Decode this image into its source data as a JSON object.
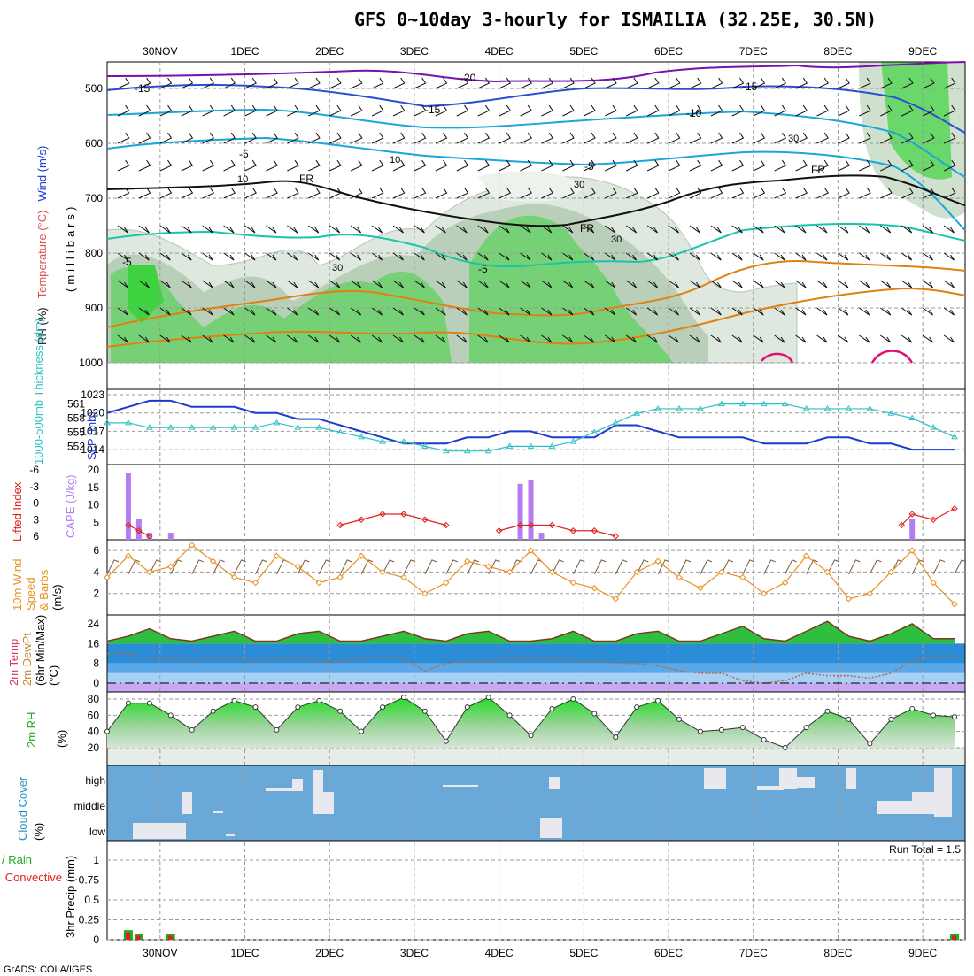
{
  "title": "GFS 0~10day 3-hourly for ISMAILIA (32.25E, 30.5N)",
  "footer": "GrADS: COLA/IGES",
  "run_total_label": "Run Total = 1.5",
  "dates": [
    "30NOV",
    "1DEC",
    "2DEC",
    "3DEC",
    "4DEC",
    "5DEC",
    "6DEC",
    "7DEC",
    "8DEC",
    "9DEC"
  ],
  "colors": {
    "frame": "#000000",
    "grid": "#9a9a9a",
    "rh_green": "#3fd33f",
    "rh_pale": "#e6efe6",
    "temp_purple": "#7a10b0",
    "temp_blue": "#2a50d0",
    "temp_cyan": "#1aa6d8",
    "temp_teal": "#19c4a8",
    "temp_orange": "#e08010",
    "slp": "#1a3ad0",
    "thickness": "#2ec0c8",
    "cape": "#b57ef0",
    "lifted_index": "#e02020",
    "wind_speed": "#e89020",
    "cloud_bg": "#6aa8d8",
    "cloud_fill": "#e8e8ee",
    "precip_total": "#22aa22",
    "precip_conv": "#e02020"
  },
  "panels": {
    "upper": {
      "ylabel_parts": [
        "RH (%)",
        "Temperature (°C)",
        "Wind (m/s)"
      ],
      "yaxis_name": "millibars",
      "ticks": [
        "500",
        "600",
        "700",
        "800",
        "900",
        "1000"
      ],
      "isotherm_labels": [
        "-20",
        "-15",
        "-15",
        "-15",
        "-10",
        "-5",
        "-5",
        "-5",
        "-5",
        "FR",
        "FR",
        "FR",
        "30",
        "30",
        "30",
        "10",
        "10",
        "30"
      ]
    },
    "slp": {
      "ylabel_left": "1000-500mb Thickness (dm)",
      "ylabel_right": "SLP (mb)",
      "ticks_left": [
        "561",
        "558",
        "555",
        "552"
      ],
      "ticks_right": [
        "1023",
        "1020",
        "1017",
        "1014"
      ]
    },
    "cape": {
      "ylabel_left": "Lifted Index",
      "ylabel_right": "CAPE (J/kg)",
      "ticks_left": [
        "-6",
        "-3",
        "0",
        "3",
        "6"
      ],
      "ticks_right": [
        "20",
        "15",
        "10",
        "5"
      ]
    },
    "wind": {
      "ylabel_parts": [
        "10m Wind",
        "Speed",
        "& Barbs",
        "(m/s)"
      ],
      "ticks": [
        "6",
        "4",
        "2"
      ]
    },
    "temp": {
      "ylabel_parts": [
        "2m Temp",
        "2m DewPt",
        "(6hr Min/Max)",
        "(°C)"
      ],
      "ticks": [
        "24",
        "16",
        "8",
        "0"
      ]
    },
    "rh": {
      "ylabel_parts": [
        "2m RH",
        "(%)"
      ],
      "ticks": [
        "80",
        "60",
        "40",
        "20"
      ]
    },
    "cloud": {
      "ylabel_parts": [
        "Cloud Cover",
        "(%)"
      ],
      "levels": [
        "high",
        "middle",
        "low"
      ]
    },
    "precip": {
      "ylabel_parts": [
        "Total / Rain",
        "Convective",
        "3hr Precip (mm)"
      ],
      "ticks": [
        "1",
        "0.75",
        "0.5",
        "0.25",
        "0"
      ]
    }
  },
  "chart_data": [
    {
      "type": "line",
      "title": "SLP / 1000-500mb Thickness",
      "x_unit": "hours from 29NOV 12Z",
      "series": [
        {
          "name": "SLP (mb)",
          "y_range": [
            1013,
            1023
          ],
          "x": [
            0,
            6,
            12,
            18,
            24,
            30,
            36,
            42,
            48,
            54,
            60,
            66,
            72,
            78,
            84,
            90,
            96,
            102,
            108,
            114,
            120,
            126,
            132,
            138,
            144,
            150,
            156,
            162,
            168,
            174,
            180,
            186,
            192,
            198,
            204,
            210,
            216,
            222,
            228,
            234,
            240
          ],
          "values": [
            1020,
            1021,
            1022,
            1022,
            1021,
            1021,
            1021,
            1020,
            1020,
            1019,
            1019,
            1018,
            1017,
            1016,
            1015,
            1015,
            1015,
            1016,
            1016,
            1017,
            1017,
            1016,
            1016,
            1016,
            1018,
            1018,
            1017,
            1016,
            1016,
            1016,
            1016,
            1015,
            1015,
            1015,
            1016,
            1016,
            1015,
            1015,
            1014,
            1014,
            1014
          ]
        },
        {
          "name": "1000-500mb Thickness (dm)",
          "y_range": [
            550,
            563
          ],
          "x": [
            0,
            6,
            12,
            18,
            24,
            30,
            36,
            42,
            48,
            54,
            60,
            66,
            72,
            78,
            84,
            90,
            96,
            102,
            108,
            114,
            120,
            126,
            132,
            138,
            144,
            150,
            156,
            162,
            168,
            174,
            180,
            186,
            192,
            198,
            204,
            210,
            216,
            222,
            228,
            234,
            240
          ],
          "values": [
            557,
            557,
            556,
            556,
            556,
            556,
            556,
            556,
            557,
            556,
            556,
            555,
            554,
            553,
            553,
            552,
            551,
            551,
            551,
            552,
            552,
            552,
            553,
            555,
            557,
            559,
            560,
            560,
            560,
            561,
            561,
            561,
            561,
            560,
            560,
            560,
            560,
            559,
            558,
            556,
            554
          ]
        }
      ]
    },
    {
      "type": "bar",
      "title": "CAPE (J/kg) / Lifted Index",
      "series": [
        {
          "name": "CAPE (J/kg)",
          "x": [
            6,
            9,
            12,
            18,
            117,
            120,
            123,
            228
          ],
          "values": [
            19,
            6,
            2,
            2,
            16,
            17,
            2,
            6
          ]
        },
        {
          "name": "Lifted Index",
          "x": [
            6,
            9,
            12,
            66,
            72,
            78,
            84,
            90,
            96,
            111,
            117,
            120,
            126,
            132,
            138,
            144,
            225,
            228,
            234,
            240
          ],
          "values": [
            4,
            5,
            6,
            4,
            3,
            2,
            2,
            3,
            4,
            5,
            4,
            4,
            4,
            5,
            5,
            6,
            4,
            2,
            3,
            1
          ]
        }
      ]
    },
    {
      "type": "line",
      "title": "10m Wind Speed (m/s)",
      "x": [
        0,
        6,
        12,
        18,
        24,
        30,
        36,
        42,
        48,
        54,
        60,
        66,
        72,
        78,
        84,
        90,
        96,
        102,
        108,
        114,
        120,
        126,
        132,
        138,
        144,
        150,
        156,
        162,
        168,
        174,
        180,
        186,
        192,
        198,
        204,
        210,
        216,
        222,
        228,
        234,
        240
      ],
      "values": [
        3.5,
        5.5,
        4,
        4.5,
        6.5,
        5,
        3.5,
        3,
        5.5,
        4.5,
        3,
        3.5,
        5.5,
        4,
        3.5,
        2,
        3,
        5,
        4.5,
        4,
        6,
        4,
        3,
        2.5,
        1.5,
        4,
        5,
        3.5,
        2.5,
        4,
        3.5,
        2,
        3,
        5.5,
        4,
        1.5,
        2,
        4,
        6,
        3,
        1
      ],
      "ylim": [
        0,
        7
      ]
    },
    {
      "type": "area",
      "title": "2m Temp / DewPt (°C)",
      "x": [
        0,
        6,
        12,
        18,
        24,
        30,
        36,
        42,
        48,
        54,
        60,
        66,
        72,
        78,
        84,
        90,
        96,
        102,
        108,
        114,
        120,
        126,
        132,
        138,
        144,
        150,
        156,
        162,
        168,
        174,
        180,
        186,
        192,
        198,
        204,
        210,
        216,
        222,
        228,
        234,
        240
      ],
      "series": [
        {
          "name": "2m Temp",
          "values": [
            17,
            19,
            22,
            18,
            17,
            19,
            21,
            17,
            17,
            20,
            21,
            17,
            17,
            19,
            21,
            18,
            17,
            20,
            21,
            17,
            17,
            18,
            21,
            17,
            17,
            20,
            21,
            17,
            17,
            20,
            23,
            18,
            17,
            21,
            25,
            19,
            17,
            20,
            24,
            18,
            18
          ]
        },
        {
          "name": "2m DewPt",
          "values": [
            12,
            12,
            10,
            10,
            9,
            10,
            10,
            9,
            10,
            10,
            9,
            9,
            10,
            11,
            10,
            5,
            8,
            9,
            9,
            10,
            10,
            10,
            9,
            9,
            8,
            8,
            7,
            5,
            4,
            4,
            1,
            0,
            1,
            4,
            3,
            3,
            2,
            4,
            9,
            11,
            11
          ]
        }
      ],
      "ylim": [
        -2,
        26
      ]
    },
    {
      "type": "area",
      "title": "2m RH (%)",
      "x": [
        0,
        6,
        12,
        18,
        24,
        30,
        36,
        42,
        48,
        54,
        60,
        66,
        72,
        78,
        84,
        90,
        96,
        102,
        108,
        114,
        120,
        126,
        132,
        138,
        144,
        150,
        156,
        162,
        168,
        174,
        180,
        186,
        192,
        198,
        204,
        210,
        216,
        222,
        228,
        234,
        240
      ],
      "values": [
        40,
        75,
        75,
        60,
        42,
        65,
        78,
        70,
        42,
        70,
        78,
        65,
        40,
        70,
        82,
        65,
        28,
        70,
        82,
        60,
        35,
        68,
        80,
        62,
        33,
        70,
        78,
        55,
        40,
        42,
        45,
        30,
        20,
        45,
        65,
        55,
        25,
        55,
        68,
        60,
        58
      ],
      "ylim": [
        0,
        90
      ]
    },
    {
      "type": "bar",
      "title": "3hr Precip (mm)",
      "series": [
        {
          "name": "Total / Rain",
          "x": [
            6,
            9,
            18,
            240
          ],
          "values": [
            0.12,
            0.07,
            0.07,
            0.07
          ]
        },
        {
          "name": "Convective",
          "x": [
            6,
            9,
            18,
            240
          ],
          "values": [
            0.09,
            0.05,
            0.05,
            0.05
          ]
        }
      ],
      "ylim": [
        0,
        1.2
      ]
    }
  ]
}
